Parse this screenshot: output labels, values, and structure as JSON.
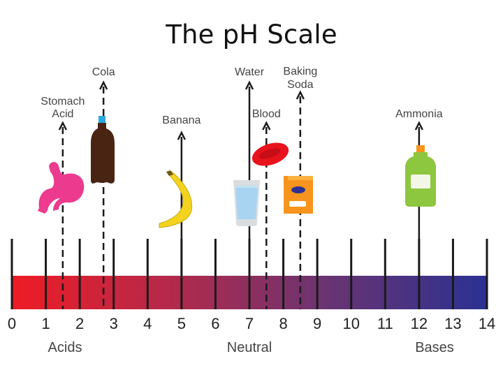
{
  "title": "The pH Scale",
  "scale": {
    "min": 0,
    "max": 14,
    "ticks": [
      "0",
      "1",
      "2",
      "3",
      "4",
      "5",
      "6",
      "7",
      "8",
      "9",
      "10",
      "11",
      "12",
      "13",
      "14"
    ],
    "gradient": [
      "#ee1c25",
      "#b5294a",
      "#6a3472",
      "#2b3192"
    ]
  },
  "regions": {
    "acids": "Acids",
    "neutral": "Neutral",
    "bases": "Bases"
  },
  "items": [
    {
      "key": "stomach",
      "label": [
        "Stomach",
        "Acid"
      ],
      "ph": 1.5,
      "line": "dashed",
      "icon": "stomach-icon",
      "color": "#ec3a8e"
    },
    {
      "key": "cola",
      "label": [
        "Cola"
      ],
      "ph": 2.7,
      "line": "dashed",
      "icon": "cola-bottle-icon",
      "color": "#4a2413"
    },
    {
      "key": "banana",
      "label": [
        "Banana"
      ],
      "ph": 5,
      "line": "solid",
      "icon": "banana-icon",
      "color": "#f4d31f"
    },
    {
      "key": "water",
      "label": [
        "Water"
      ],
      "ph": 7,
      "line": "solid",
      "icon": "water-glass-icon",
      "color": "#a9d4f1"
    },
    {
      "key": "blood",
      "label": [
        "Blood"
      ],
      "ph": 7.5,
      "line": "dashed",
      "icon": "blood-cell-icon",
      "color": "#e8131c"
    },
    {
      "key": "baking",
      "label": [
        "Baking",
        "Soda"
      ],
      "ph": 8.5,
      "line": "dashed",
      "icon": "baking-soda-box-icon",
      "color": "#f7941d"
    },
    {
      "key": "ammonia",
      "label": [
        "Ammonia"
      ],
      "ph": 12,
      "line": "solid",
      "icon": "ammonia-bottle-icon",
      "color": "#8dc63f"
    }
  ]
}
